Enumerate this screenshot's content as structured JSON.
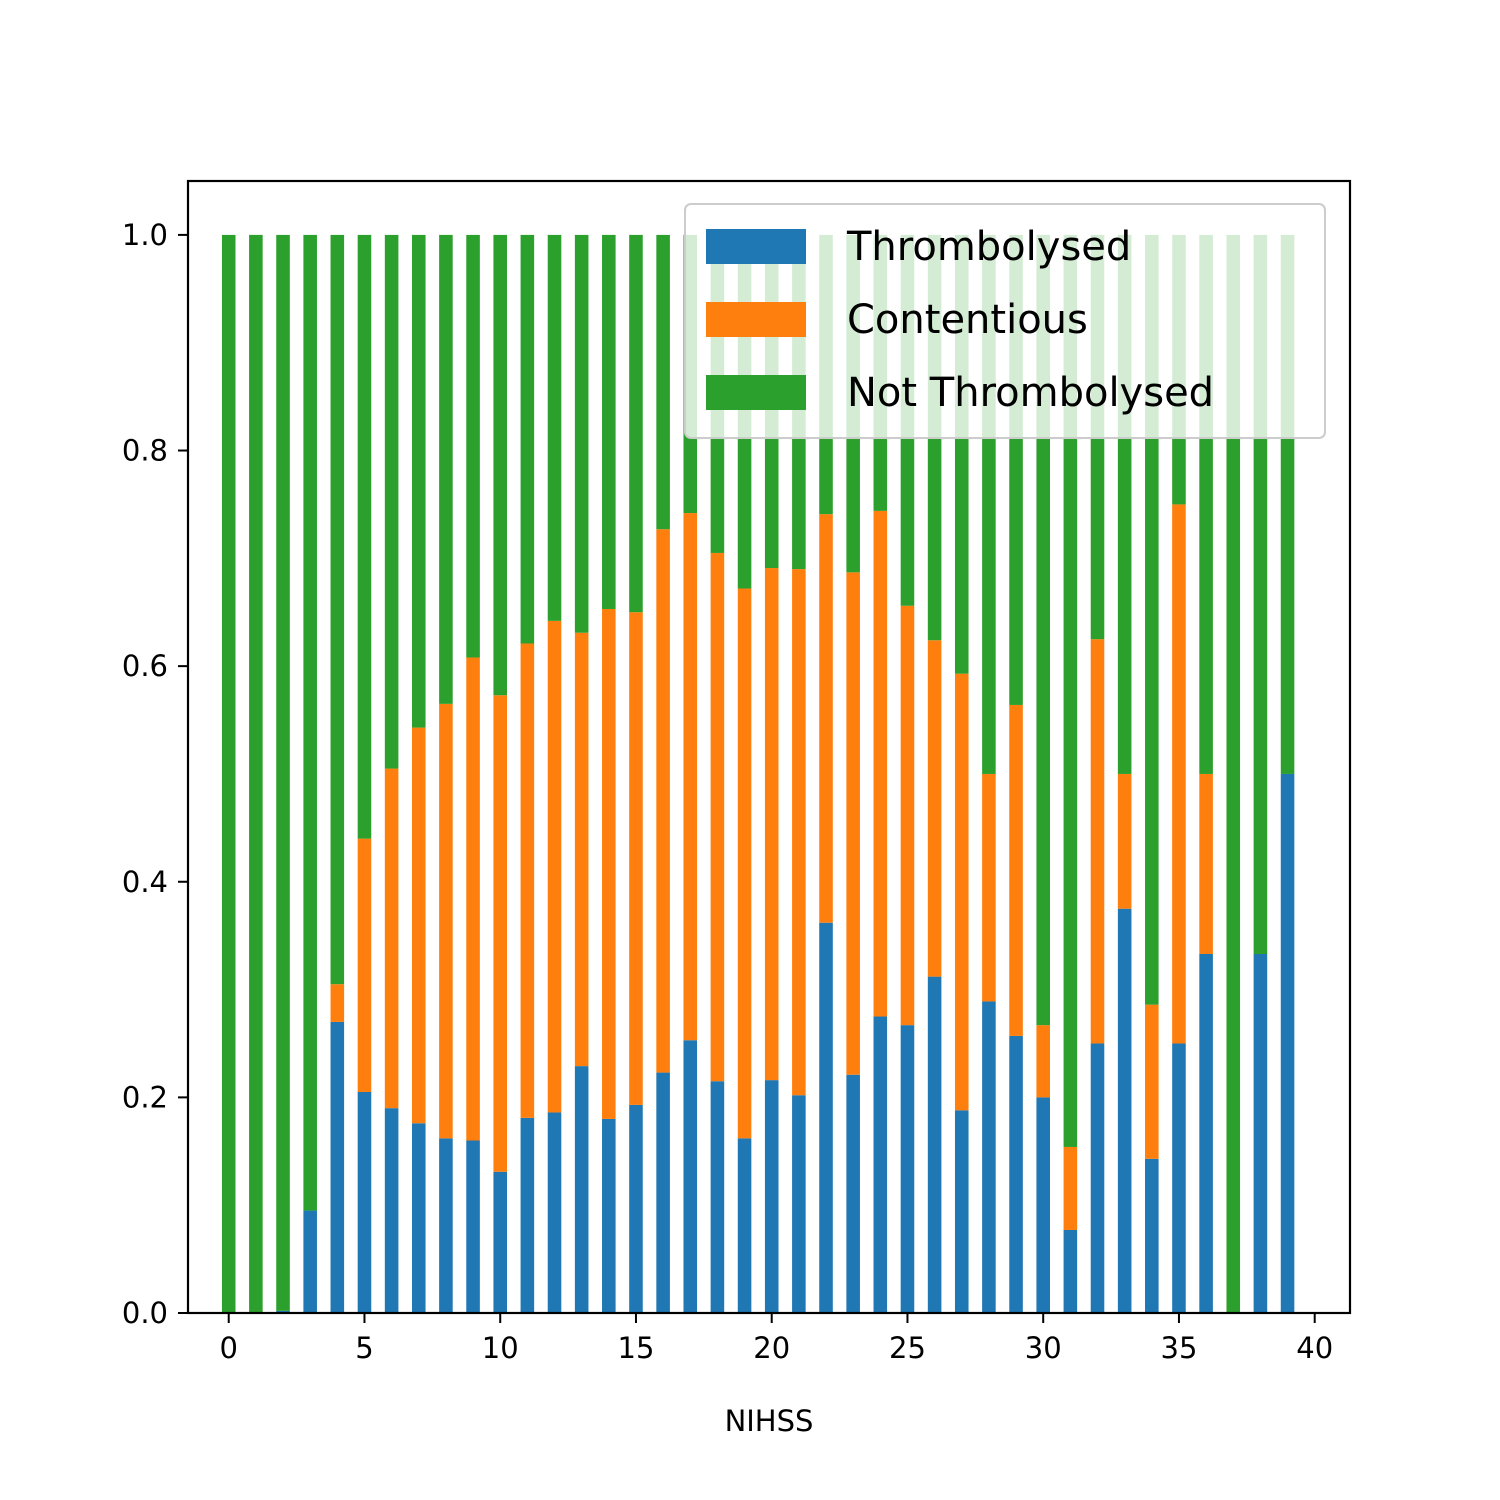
{
  "chart_data": {
    "type": "bar",
    "stacked": true,
    "title": "",
    "xlabel": "NIHSS",
    "ylabel": "",
    "xlim": [
      -1.5,
      41.3
    ],
    "ylim": [
      0,
      1.05
    ],
    "xticks": [
      0,
      5,
      10,
      15,
      20,
      25,
      30,
      35,
      40
    ],
    "yticks": [
      0.0,
      0.2,
      0.4,
      0.6,
      0.8,
      1.0
    ],
    "ytick_labels": [
      "0.0",
      "0.2",
      "0.4",
      "0.6",
      "0.8",
      "1.0"
    ],
    "legend_position": "upper-right",
    "grid": false,
    "bar_width": 0.5,
    "x": [
      0,
      1,
      2,
      3,
      4,
      5,
      6,
      7,
      8,
      9,
      10,
      11,
      12,
      13,
      14,
      15,
      16,
      17,
      18,
      19,
      20,
      21,
      22,
      23,
      24,
      25,
      26,
      27,
      28,
      29,
      30,
      31,
      32,
      33,
      34,
      35,
      36,
      37,
      38,
      39
    ],
    "series": [
      {
        "name": "Thrombolysed",
        "color": "#1f77b4",
        "values": [
          0,
          0,
          0.002,
          0.095,
          0.27,
          0.205,
          0.19,
          0.176,
          0.162,
          0.16,
          0.131,
          0.181,
          0.186,
          0.229,
          0.18,
          0.193,
          0.223,
          0.253,
          0.215,
          0.162,
          0.216,
          0.202,
          0.362,
          0.221,
          0.275,
          0.267,
          0.312,
          0.188,
          0.289,
          0.257,
          0.2,
          0.077,
          0.25,
          0.375,
          0.143,
          0.25,
          0.333,
          0,
          0.333,
          0.5
        ]
      },
      {
        "name": "Contentious",
        "color": "#ff7f0e",
        "values": [
          0,
          0,
          0,
          0,
          0.035,
          0.235,
          0.315,
          0.367,
          0.403,
          0.448,
          0.442,
          0.44,
          0.456,
          0.402,
          0.473,
          0.457,
          0.504,
          0.489,
          0.49,
          0.51,
          0.475,
          0.488,
          0.379,
          0.466,
          0.469,
          0.389,
          0.312,
          0.405,
          0.211,
          0.307,
          0.067,
          0.077,
          0.375,
          0.125,
          0.143,
          0.5,
          0.167,
          0,
          0,
          0
        ]
      },
      {
        "name": "Not Thrombolysed",
        "color": "#2ca02c",
        "values": [
          1.0,
          1.0,
          0.998,
          0.905,
          0.695,
          0.56,
          0.495,
          0.457,
          0.435,
          0.392,
          0.427,
          0.379,
          0.358,
          0.369,
          0.347,
          0.35,
          0.273,
          0.258,
          0.295,
          0.328,
          0.309,
          0.31,
          0.259,
          0.313,
          0.256,
          0.344,
          0.376,
          0.407,
          0.5,
          0.436,
          0.733,
          0.846,
          0.375,
          0.5,
          0.714,
          0.25,
          0.5,
          1.0,
          0.667,
          0.5
        ]
      }
    ]
  }
}
